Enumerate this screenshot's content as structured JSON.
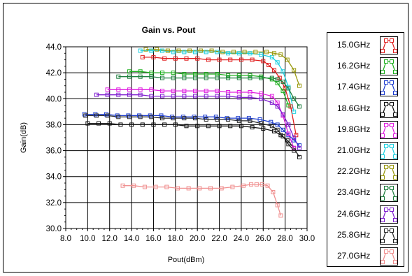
{
  "chart_data": {
    "type": "line",
    "title": "Gain vs. Pout",
    "xlabel": "Pout(dBm)",
    "ylabel": "Gain(dB)",
    "xlim": [
      8.0,
      30.0
    ],
    "ylim": [
      30.0,
      44.0
    ],
    "x_ticks": [
      "8.0",
      "10.0",
      "12.0",
      "14.0",
      "16.0",
      "18.0",
      "20.0",
      "22.0",
      "24.0",
      "26.0",
      "28.0",
      "30.0"
    ],
    "y_ticks": [
      "30.0",
      "32.0",
      "34.0",
      "36.0",
      "38.0",
      "40.0",
      "42.0",
      "44.0"
    ],
    "grid": true,
    "legend_position": "right",
    "series": [
      {
        "name": "15.0GHz",
        "color": "#e02020",
        "x": [
          15.0,
          16.0,
          17.0,
          18.0,
          19.0,
          20.0,
          21.0,
          22.0,
          23.0,
          24.0,
          25.0,
          26.0,
          26.5,
          27.0,
          27.5,
          28.0,
          28.5,
          29.0
        ],
        "y": [
          43.2,
          43.2,
          43.1,
          43.1,
          43.1,
          43.1,
          43.0,
          43.0,
          43.0,
          43.0,
          43.0,
          42.9,
          42.6,
          42.2,
          41.6,
          40.8,
          39.4,
          37.2
        ]
      },
      {
        "name": "16.2GHz",
        "color": "#20b020",
        "x": [
          13.8,
          14.8,
          15.8,
          16.8,
          17.8,
          18.8,
          19.8,
          20.8,
          21.8,
          22.8,
          23.8,
          24.8,
          25.8,
          26.8,
          27.3,
          27.8,
          28.3
        ],
        "y": [
          42.1,
          42.1,
          42.0,
          42.0,
          42.0,
          41.9,
          41.9,
          41.9,
          41.9,
          41.8,
          41.8,
          41.8,
          41.7,
          41.5,
          41.2,
          40.6,
          39.5
        ]
      },
      {
        "name": "17.4GHz",
        "color": "#2040d0",
        "x": [
          9.7,
          10.7,
          11.7,
          12.7,
          13.7,
          14.7,
          15.7,
          16.7,
          17.7,
          18.7,
          19.7,
          20.7,
          21.7,
          22.7,
          23.7,
          24.7,
          25.7,
          26.7,
          27.3,
          27.8,
          28.3,
          28.8,
          29.3
        ],
        "y": [
          38.8,
          38.8,
          38.8,
          38.7,
          38.7,
          38.7,
          38.7,
          38.7,
          38.6,
          38.6,
          38.6,
          38.6,
          38.6,
          38.5,
          38.5,
          38.5,
          38.4,
          38.2,
          38.0,
          37.6,
          37.2,
          36.8,
          36.4
        ]
      },
      {
        "name": "18.6GHz",
        "color": "#101010",
        "x": [
          10.0,
          11.0,
          12.0,
          13.0,
          14.0,
          15.0,
          16.0,
          17.0,
          18.0,
          19.0,
          20.0,
          21.0,
          22.0,
          23.0,
          24.0,
          25.0,
          26.0,
          27.0,
          27.6,
          28.2,
          28.8,
          29.3
        ],
        "y": [
          38.1,
          38.1,
          38.1,
          38.0,
          38.0,
          38.0,
          38.0,
          38.0,
          38.0,
          37.9,
          37.9,
          37.9,
          37.9,
          37.9,
          37.9,
          37.8,
          37.7,
          37.5,
          37.2,
          36.8,
          36.2,
          35.5
        ]
      },
      {
        "name": "19.8GHz",
        "color": "#e020e0",
        "x": [
          11.8,
          12.8,
          13.8,
          14.8,
          15.8,
          16.8,
          17.8,
          18.8,
          19.8,
          20.8,
          21.8,
          22.8,
          23.8,
          24.8,
          25.8,
          26.8,
          27.3,
          27.8,
          28.3,
          28.8
        ],
        "y": [
          40.7,
          40.7,
          40.7,
          40.7,
          40.7,
          40.6,
          40.6,
          40.6,
          40.6,
          40.6,
          40.6,
          40.5,
          40.5,
          40.5,
          40.4,
          40.2,
          39.7,
          38.7,
          37.3,
          36.2
        ]
      },
      {
        "name": "21.0GHz",
        "color": "#20d0e0",
        "x": [
          14.8,
          15.8,
          16.8,
          17.8,
          18.8,
          19.8,
          20.8,
          21.8,
          22.8,
          23.8,
          24.8,
          25.8,
          26.8,
          27.3,
          27.8,
          28.3,
          28.8
        ],
        "y": [
          43.7,
          43.7,
          43.7,
          43.6,
          43.6,
          43.6,
          43.6,
          43.6,
          43.5,
          43.5,
          43.5,
          43.4,
          43.2,
          42.8,
          42.1,
          40.9,
          39.0
        ]
      },
      {
        "name": "22.2GHz",
        "color": "#9a9a10",
        "x": [
          15.3,
          16.3,
          17.3,
          18.3,
          19.3,
          20.3,
          21.3,
          22.3,
          23.3,
          24.3,
          25.3,
          26.3,
          27.0,
          27.6,
          28.2,
          28.8,
          29.3
        ],
        "y": [
          43.8,
          43.8,
          43.7,
          43.7,
          43.7,
          43.7,
          43.7,
          43.6,
          43.6,
          43.6,
          43.6,
          43.6,
          43.5,
          43.4,
          43.0,
          42.2,
          41.0
        ]
      },
      {
        "name": "23.4GHz",
        "color": "#208040",
        "x": [
          12.8,
          13.8,
          14.8,
          15.8,
          16.8,
          17.8,
          18.8,
          19.8,
          20.8,
          21.8,
          22.8,
          23.8,
          24.8,
          25.8,
          26.8,
          27.3,
          27.8,
          28.3,
          28.8,
          29.3
        ],
        "y": [
          41.7,
          41.7,
          41.7,
          41.7,
          41.6,
          41.6,
          41.6,
          41.6,
          41.6,
          41.6,
          41.6,
          41.6,
          41.6,
          41.6,
          41.6,
          41.5,
          41.3,
          40.8,
          40.0,
          39.4
        ]
      },
      {
        "name": "24.6GHz",
        "color": "#8020d0",
        "x": [
          10.8,
          11.8,
          12.8,
          13.8,
          14.8,
          15.8,
          16.8,
          17.8,
          18.8,
          19.8,
          20.8,
          21.8,
          22.8,
          23.8,
          24.8,
          25.8,
          26.8,
          27.3,
          27.8,
          28.3,
          28.8,
          29.3
        ],
        "y": [
          40.3,
          40.3,
          40.3,
          40.3,
          40.3,
          40.2,
          40.2,
          40.2,
          40.2,
          40.2,
          40.2,
          40.2,
          40.2,
          40.1,
          40.1,
          40.0,
          39.7,
          39.4,
          38.8,
          38.0,
          37.0,
          36.2
        ]
      },
      {
        "name": "25.8GHz",
        "color": "#2a2a2a",
        "x": [
          9.8,
          10.8,
          11.8,
          12.8,
          13.8,
          14.8,
          15.8,
          16.8,
          17.8,
          18.8,
          19.8,
          20.8,
          21.8,
          22.8,
          23.8,
          24.8,
          25.8,
          26.8,
          27.3,
          27.8,
          28.3,
          28.8
        ],
        "y": [
          38.7,
          38.7,
          38.7,
          38.6,
          38.6,
          38.6,
          38.6,
          38.5,
          38.5,
          38.5,
          38.5,
          38.4,
          38.4,
          38.4,
          38.3,
          38.3,
          38.1,
          37.9,
          37.6,
          37.1,
          36.5,
          36.0
        ]
      },
      {
        "name": "27.0GHz",
        "color": "#f09090",
        "x": [
          13.2,
          14.2,
          15.2,
          16.2,
          17.2,
          18.2,
          19.2,
          20.2,
          21.2,
          22.2,
          23.2,
          24.2,
          24.9,
          25.4,
          25.9,
          26.4,
          26.9,
          27.3,
          27.6
        ],
        "y": [
          33.3,
          33.3,
          33.2,
          33.2,
          33.2,
          33.1,
          33.1,
          33.1,
          33.1,
          33.1,
          33.2,
          33.3,
          33.4,
          33.4,
          33.4,
          33.3,
          32.8,
          31.8,
          31.0
        ]
      }
    ]
  }
}
